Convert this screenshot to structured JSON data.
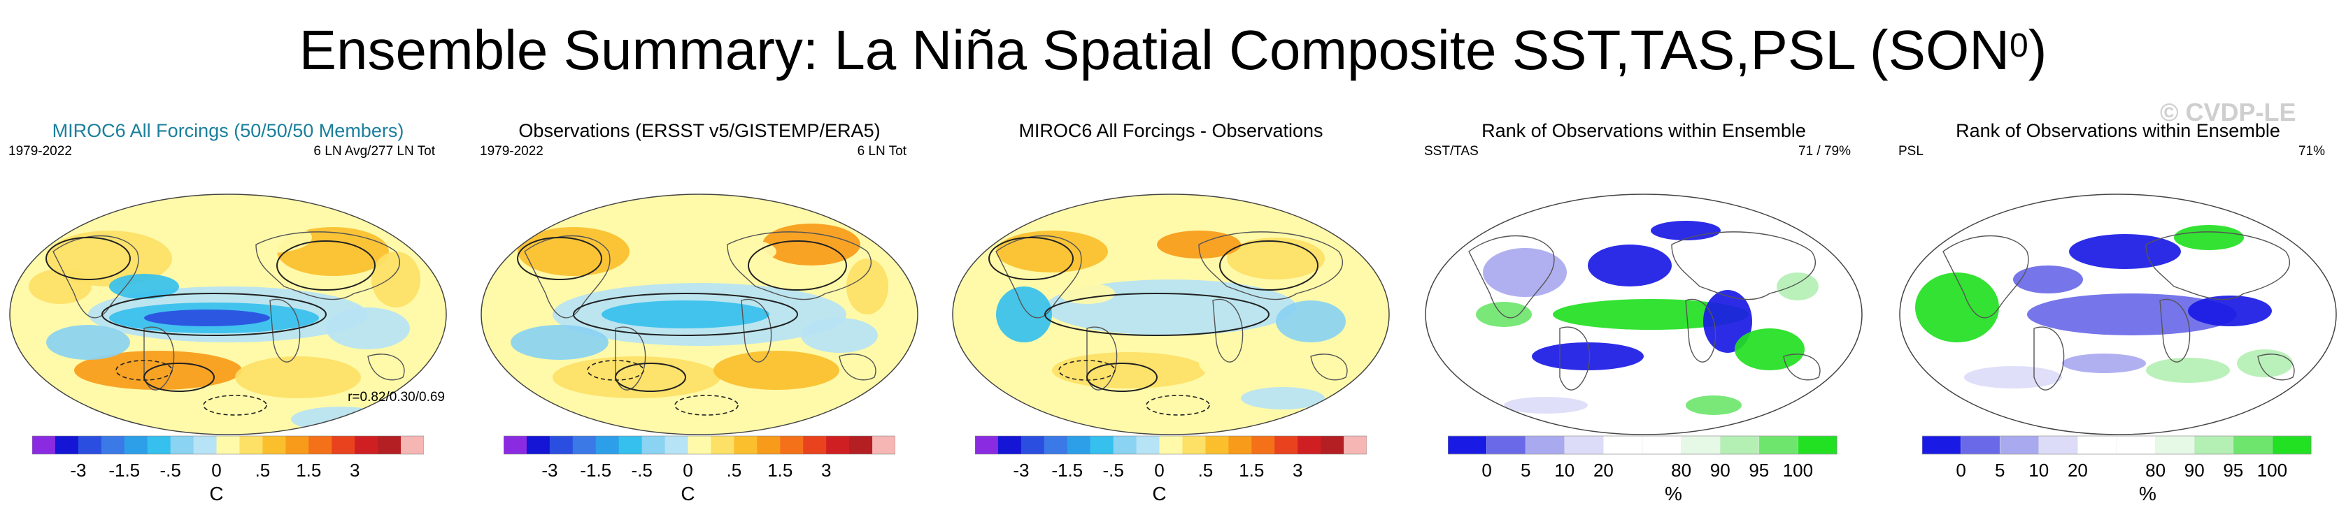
{
  "figure": {
    "title": "Ensemble Summary: La Niña Spatial Composite SST,TAS,PSL (SON",
    "title_superscript": "0",
    "title_close": ")",
    "watermark": "© CVDP-LE"
  },
  "palettes": {
    "anomaly_colors": [
      "#8a2be2",
      "#1515d5",
      "#2a4fe0",
      "#3b79e6",
      "#2d9fe8",
      "#36c0ee",
      "#8ad3f2",
      "#b6e3f5",
      "#fffaa9",
      "#fde066",
      "#fbbf2e",
      "#f89b1a",
      "#f4711a",
      "#e9421e",
      "#d01f22",
      "#b41f24",
      "#f6b6b4"
    ],
    "rank_colors": [
      "#1a1ae5",
      "#6a6ae8",
      "#a9a9f0",
      "#dcdcf9",
      "#ffffff",
      "#ffffff",
      "#e6f9e6",
      "#b4f0b4",
      "#6ee66e",
      "#22e022"
    ]
  },
  "panels": [
    {
      "title": "MIROC6 All Forcings (50/50/50 Members)",
      "left_label": "1979-2022",
      "right_label": "6 LN Avg/277 LN Tot",
      "bottom_right_label": "r=0.82/0.30/0.69",
      "colorbar": "anomaly"
    },
    {
      "title": "Observations (ERSST v5/GISTEMP/ERA5)",
      "left_label": "1979-2022",
      "right_label": "6 LN Tot",
      "colorbar": "anomaly"
    },
    {
      "title": "MIROC6 All Forcings - Observations",
      "colorbar": "anomaly"
    },
    {
      "title": "Rank of Observations within Ensemble",
      "left_label": "SST/TAS",
      "right_label": "71 /  79%",
      "colorbar": "rank"
    },
    {
      "title": "Rank of Observations within Ensemble",
      "left_label": "PSL",
      "right_label": "71%",
      "colorbar": "rank"
    }
  ],
  "chart_data": [
    {
      "type": "heatmap",
      "title": "MIROC6 All Forcings (50/50/50 Members)",
      "projection": "global map",
      "period": "1979-2022",
      "colorbar_ticks": [
        "-3",
        "-1.5",
        "-.5",
        "0",
        ".5",
        "1.5",
        "3"
      ],
      "colorbar_unit": "C",
      "pattern_correlation": "r=0.82/0.30/0.69"
    },
    {
      "type": "heatmap",
      "title": "Observations (ERSST v5/GISTEMP/ERA5)",
      "projection": "global map",
      "period": "1979-2022",
      "colorbar_ticks": [
        "-3",
        "-1.5",
        "-.5",
        "0",
        ".5",
        "1.5",
        "3"
      ],
      "colorbar_unit": "C"
    },
    {
      "type": "heatmap",
      "title": "MIROC6 All Forcings - Observations",
      "projection": "global map",
      "colorbar_ticks": [
        "-3",
        "-1.5",
        "-.5",
        "0",
        ".5",
        "1.5",
        "3"
      ],
      "colorbar_unit": "C"
    },
    {
      "type": "heatmap",
      "title": "Rank of Observations within Ensemble",
      "variables": "SST/TAS",
      "summary": "71 /  79%",
      "colorbar_ticks": [
        "0",
        "5",
        "10",
        "20",
        "80",
        "90",
        "95",
        "100"
      ],
      "colorbar_unit": "%"
    },
    {
      "type": "heatmap",
      "title": "Rank of Observations within Ensemble",
      "variables": "PSL",
      "summary": "71%",
      "colorbar_ticks": [
        "0",
        "5",
        "10",
        "20",
        "80",
        "90",
        "95",
        "100"
      ],
      "colorbar_unit": "%"
    }
  ]
}
